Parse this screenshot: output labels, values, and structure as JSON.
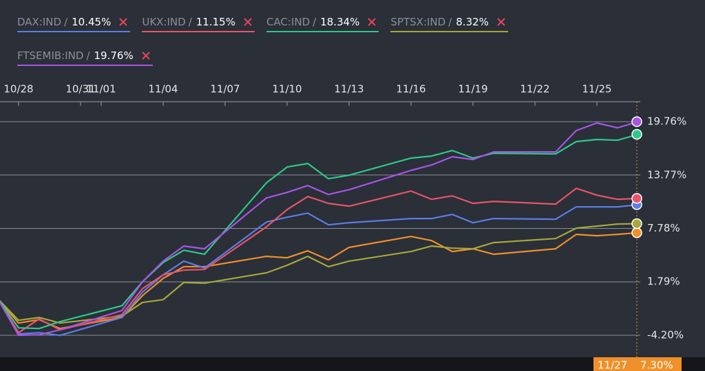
{
  "chart_data": {
    "type": "line",
    "legend_separator": "/",
    "x": [
      "10/27",
      "10/28",
      "10/29",
      "10/30",
      "11/02",
      "11/03",
      "11/04",
      "11/05",
      "11/06",
      "11/09",
      "11/10",
      "11/11",
      "11/12",
      "11/13",
      "11/16",
      "11/17",
      "11/18",
      "11/19",
      "11/20",
      "11/23",
      "11/24",
      "11/25",
      "11/26",
      "11/27"
    ],
    "xlim": [
      "10/27",
      "11/27"
    ],
    "xticks": [
      "10/28",
      "10/31",
      "11/01",
      "11/04",
      "11/07",
      "11/10",
      "11/13",
      "11/16",
      "11/19",
      "11/22",
      "11/25"
    ],
    "ylim": [
      -6.67,
      22.0
    ],
    "yticks": [
      {
        "value": -4.2,
        "label": "-4.20%"
      },
      {
        "value": 1.79,
        "label": "1.79%"
      },
      {
        "value": 7.78,
        "label": "7.78%"
      },
      {
        "value": 13.77,
        "label": "13.77%"
      },
      {
        "value": 19.76,
        "label": "19.76%"
      }
    ],
    "grid": true,
    "crosshair": {
      "x": "11/27",
      "value": 7.3,
      "label": "7.30%",
      "color": "#f0902a"
    },
    "series": [
      {
        "color": "#f0902a",
        "values": [
          -0.13,
          -2.83,
          -2.45,
          -3.45,
          -2.21,
          0.25,
          2.18,
          3.49,
          3.49,
          4.65,
          4.49,
          5.27,
          4.26,
          5.65,
          6.88,
          6.42,
          5.19,
          5.5,
          4.88,
          5.5,
          7.12,
          6.96,
          7.12,
          7.3
        ]
      },
      {
        "name": "SPTSX:IND",
        "color": "#a8a83a",
        "values": [
          -0.13,
          -2.52,
          -2.21,
          -2.83,
          -2.06,
          -0.52,
          -0.21,
          1.72,
          1.64,
          2.8,
          3.65,
          4.65,
          3.49,
          4.11,
          5.19,
          5.81,
          5.57,
          5.5,
          6.19,
          6.65,
          7.81,
          8.04,
          8.27,
          8.32
        ],
        "value_labels": [
          null,
          null,
          null,
          null,
          null,
          null,
          null,
          null,
          null,
          null,
          null,
          null,
          null,
          null,
          null,
          null,
          null,
          null,
          null,
          null,
          null,
          null,
          null,
          "8.32%"
        ]
      },
      {
        "name": "DAX:IND",
        "color": "#5b7ee6",
        "values": [
          -0.13,
          -4.06,
          -3.91,
          -4.22,
          -2.21,
          0.64,
          2.57,
          4.11,
          3.34,
          8.5,
          9.04,
          9.5,
          8.19,
          8.42,
          8.89,
          8.89,
          9.35,
          8.42,
          8.89,
          8.81,
          10.2,
          10.2,
          10.2,
          10.45
        ],
        "value_labels": [
          null,
          null,
          null,
          null,
          null,
          null,
          null,
          null,
          null,
          null,
          null,
          null,
          null,
          null,
          null,
          null,
          null,
          null,
          null,
          null,
          null,
          null,
          null,
          "10.45%"
        ]
      },
      {
        "name": "UKX:IND",
        "color": "#e8546a",
        "values": [
          -0.13,
          -3.91,
          -2.37,
          -3.6,
          -1.9,
          1.03,
          2.57,
          3.11,
          3.18,
          7.96,
          9.89,
          11.36,
          10.59,
          10.28,
          11.97,
          11.05,
          11.43,
          10.59,
          10.82,
          10.51,
          12.28,
          11.51,
          11.05,
          11.15
        ],
        "value_labels": [
          null,
          null,
          null,
          null,
          null,
          null,
          null,
          null,
          null,
          null,
          null,
          null,
          null,
          null,
          null,
          null,
          null,
          null,
          null,
          null,
          null,
          null,
          null,
          "11.15%"
        ]
      },
      {
        "name": "CAC:IND",
        "color": "#2ec98a",
        "values": [
          -0.13,
          -3.37,
          -3.45,
          -2.68,
          -0.9,
          1.8,
          3.96,
          5.34,
          4.88,
          12.9,
          14.67,
          15.06,
          13.36,
          13.75,
          15.67,
          15.9,
          16.52,
          15.67,
          16.21,
          16.14,
          17.52,
          17.76,
          17.68,
          18.34
        ],
        "value_labels": [
          null,
          null,
          null,
          null,
          null,
          null,
          null,
          null,
          null,
          null,
          null,
          null,
          null,
          null,
          null,
          null,
          null,
          null,
          null,
          null,
          null,
          null,
          null,
          "18.34%"
        ]
      },
      {
        "name": "FTSEMIB:IND",
        "color": "#a855e6",
        "values": [
          -0.13,
          -4.2,
          -4.14,
          -3.6,
          -1.44,
          1.8,
          4.11,
          5.81,
          5.5,
          11.2,
          11.82,
          12.59,
          11.59,
          12.13,
          14.29,
          14.9,
          15.83,
          15.52,
          16.37,
          16.37,
          18.76,
          19.61,
          19.07,
          19.76
        ],
        "value_labels": [
          null,
          null,
          null,
          null,
          null,
          null,
          null,
          null,
          null,
          null,
          null,
          null,
          null,
          null,
          null,
          null,
          null,
          null,
          null,
          null,
          null,
          null,
          null,
          "19.76%"
        ]
      }
    ],
    "legend_order": [
      2,
      3,
      4,
      1,
      5
    ]
  }
}
